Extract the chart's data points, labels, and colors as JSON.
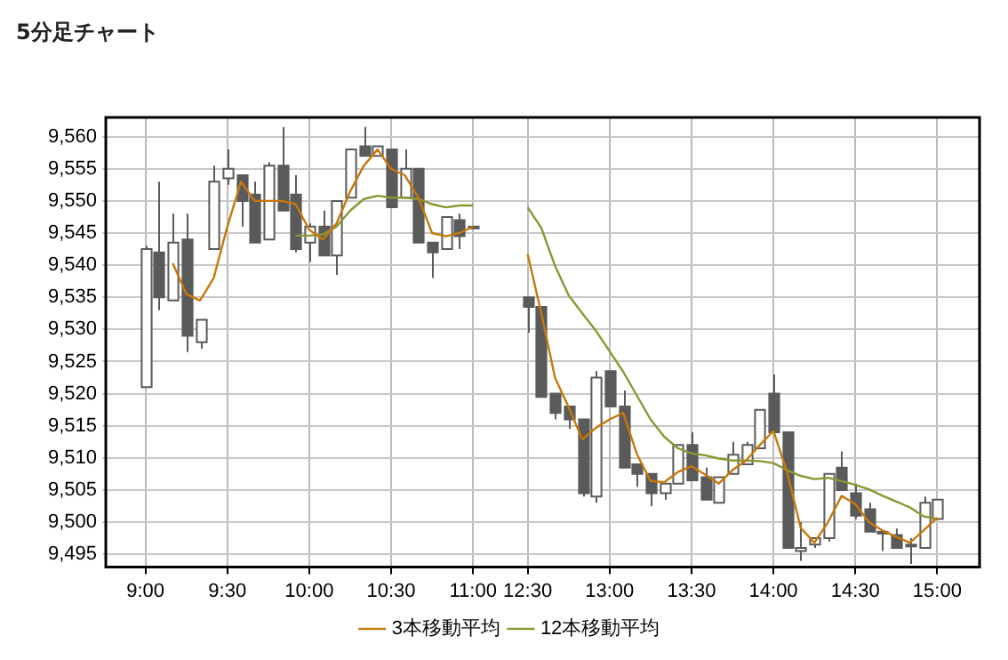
{
  "chart_data": {
    "type": "candlestick",
    "title": "5分足チャート",
    "color": "#5a5a5a",
    "categories": [
      "9:00",
      null,
      null,
      null,
      null,
      null,
      "9:30",
      null,
      null,
      null,
      null,
      null,
      "10:00",
      null,
      null,
      null,
      null,
      null,
      "10:30",
      null,
      null,
      null,
      null,
      null,
      "11:00",
      null,
      null,
      null,
      "12:30",
      null,
      null,
      null,
      null,
      null,
      "13:00",
      null,
      null,
      null,
      null,
      null,
      "13:30",
      null,
      null,
      null,
      null,
      null,
      "14:00",
      null,
      null,
      null,
      null,
      null,
      "14:30",
      null,
      null,
      null,
      null,
      null,
      "15:00"
    ],
    "ohlc": [
      [
        9521,
        9543,
        9521,
        9542.5
      ],
      [
        9542,
        9553,
        9533,
        9535
      ],
      [
        9534.5,
        9548,
        9534.5,
        9543.5
      ],
      [
        9544,
        9548,
        9526.5,
        9529
      ],
      [
        9528,
        9531.5,
        9527,
        9531.5
      ],
      [
        9542.5,
        9555.5,
        9542.5,
        9553
      ],
      [
        9553.5,
        9558,
        9552.5,
        9555
      ],
      [
        9554,
        9554,
        9546,
        9550
      ],
      [
        9551,
        9553,
        9543.5,
        9543.5
      ],
      [
        9544,
        9556,
        9544,
        9555.5
      ],
      [
        9555.5,
        9561.5,
        9548.5,
        9548.5
      ],
      [
        9551,
        9554,
        9542,
        9542.5
      ],
      [
        9543.5,
        9546.5,
        9540.5,
        9546
      ],
      [
        9546,
        9548.5,
        9541.5,
        9541.5
      ],
      [
        9541.5,
        9550,
        9538.5,
        9550
      ],
      [
        9550.5,
        9558,
        9550.5,
        9558
      ],
      [
        9558.5,
        9561.5,
        9557,
        9557
      ],
      [
        9557,
        9558.5,
        9557,
        9558.5
      ],
      [
        9558,
        9558,
        9549,
        9549
      ],
      [
        9550.5,
        9558,
        9550.5,
        9555
      ],
      [
        9555,
        9555,
        9543.5,
        9543.5
      ],
      [
        9543.5,
        9543.5,
        9538,
        9542
      ],
      [
        9542.5,
        9547.5,
        9542.5,
        9547.5
      ],
      [
        9547,
        9548,
        9542.5,
        9544.5
      ],
      [
        9546,
        9546,
        9546,
        9546
      ],
      null,
      null,
      null,
      [
        9535,
        9535,
        9529.5,
        9533.5
      ],
      [
        9533.5,
        9533.5,
        9519.5,
        9519.5
      ],
      [
        9520,
        9520,
        9516,
        9517
      ],
      [
        9518,
        9518,
        9514.5,
        9516
      ],
      [
        9516,
        9516,
        9504,
        9504.5
      ],
      [
        9504,
        9523.5,
        9503,
        9522.5
      ],
      [
        9523.5,
        9523.5,
        9518,
        9518
      ],
      [
        9518,
        9520.5,
        9508.5,
        9508.5
      ],
      [
        9509,
        9509,
        9505.5,
        9507.5
      ],
      [
        9507.5,
        9507.5,
        9502.5,
        9504.5
      ],
      [
        9504.5,
        9506,
        9503.5,
        9506
      ],
      [
        9506,
        9512,
        9506,
        9512
      ],
      [
        9512,
        9514,
        9506.5,
        9506.5
      ],
      [
        9507,
        9508.5,
        9503.5,
        9503.5
      ],
      [
        9503,
        9507,
        9503,
        9507
      ],
      [
        9507.5,
        9512.5,
        9507.5,
        9510.5
      ],
      [
        9509,
        9512.5,
        9509,
        9512
      ],
      [
        9511.5,
        9517.5,
        9511.5,
        9517.5
      ],
      [
        9520,
        9523,
        9514,
        9514
      ],
      [
        9514,
        9514,
        9496,
        9496
      ],
      [
        9495.5,
        9500,
        9494,
        9496
      ],
      [
        9496.5,
        9497.5,
        9496,
        9497.5
      ],
      [
        9497.5,
        9507.5,
        9497,
        9507.5
      ],
      [
        9508.5,
        9511,
        9505,
        9505
      ],
      [
        9504.5,
        9506,
        9500.5,
        9501
      ],
      [
        9502,
        9503,
        9498.5,
        9498.5
      ],
      [
        9498.5,
        9498.5,
        9495.5,
        9498.5
      ],
      [
        9498,
        9499,
        9496,
        9496
      ],
      [
        9496.5,
        9497.5,
        9493.5,
        9496.5
      ],
      [
        9496,
        9504,
        9496,
        9503
      ],
      [
        9500.5,
        9503.5,
        9500.5,
        9503.5
      ]
    ],
    "series": [
      {
        "type": "line",
        "name": "3本移動平均",
        "color": "#c8780a",
        "values": [
          null,
          null,
          9540.3,
          9535.5,
          9534.5,
          9538,
          9546,
          9553,
          9550,
          9550,
          9550,
          9549.5,
          9545.5,
          9544,
          9546.5,
          9551.5,
          9555.5,
          9558,
          9555,
          9554,
          9550.5,
          9545,
          9544.5,
          9545,
          9546,
          null,
          null,
          null,
          9541.7,
          9532.5,
          9522.5,
          9517.9,
          9512.9,
          9514.7,
          9516,
          9517,
          9510.6,
          9506.4,
          9506.2,
          9507.8,
          9508.7,
          9507.4,
          9506,
          9508.1,
          9509.6,
          9512,
          9514.2,
          9507.8,
          9499.1,
          9496.8,
          9500,
          9504.1,
          9502.8,
          9500,
          9498.7,
          9497.7,
          9496.8,
          9498.7,
          9500.7
        ]
      },
      {
        "type": "line",
        "name": "12本移動平均",
        "color": "#8c9632",
        "values": [
          null,
          null,
          null,
          null,
          null,
          null,
          null,
          null,
          null,
          null,
          null,
          9544.6,
          9544.6,
          9544.8,
          9546,
          9548.5,
          9550.3,
          9550.8,
          9550.5,
          9550.5,
          9550.3,
          9549.5,
          9549,
          9549.3,
          9549.3,
          null,
          null,
          null,
          9549,
          9545.8,
          9539.9,
          9535.3,
          9532.5,
          9529.8,
          9526.6,
          9523.4,
          9519.7,
          9516,
          9513.3,
          9511.5,
          9510.7,
          9510.4,
          9509.9,
          9509.6,
          9509.6,
          9509.5,
          9509.2,
          9508.1,
          9507.2,
          9506.7,
          9506.9,
          9506.4,
          9505.8,
          9505.1,
          9504.1,
          9503.2,
          9502.3,
          9500.9,
          9500.5
        ]
      }
    ],
    "ylim": [
      9493,
      9563
    ],
    "yticks": [
      {
        "value": 9495,
        "label": "9,495"
      },
      {
        "value": 9500,
        "label": "9,500"
      },
      {
        "value": 9505,
        "label": "9,505"
      },
      {
        "value": 9510,
        "label": "9,510"
      },
      {
        "value": 9515,
        "label": "9,515"
      },
      {
        "value": 9520,
        "label": "9,520"
      },
      {
        "value": 9525,
        "label": "9,525"
      },
      {
        "value": 9530,
        "label": "9,530"
      },
      {
        "value": 9535,
        "label": "9,535"
      },
      {
        "value": 9540,
        "label": "9,540"
      },
      {
        "value": 9545,
        "label": "9,545"
      },
      {
        "value": 9550,
        "label": "9,550"
      },
      {
        "value": 9555,
        "label": "9,555"
      },
      {
        "value": 9560,
        "label": "9,560"
      }
    ],
    "colors": [
      "#ffffff",
      "#5a5a5a",
      "#ffffff",
      "#5a5a5a",
      "#ffffff",
      "#ffffff",
      "#ffffff",
      "#5a5a5a",
      "#5a5a5a",
      "#ffffff",
      "#5a5a5a",
      "#5a5a5a",
      "#ffffff",
      "#5a5a5a",
      "#ffffff",
      "#ffffff",
      "#5a5a5a",
      "#ffffff",
      "#5a5a5a",
      "#ffffff",
      "#5a5a5a",
      "#5a5a5a",
      "#ffffff",
      "#5a5a5a",
      "#5a5a5a",
      null,
      null,
      null,
      "#5a5a5a",
      "#5a5a5a",
      "#5a5a5a",
      "#5a5a5a",
      "#5a5a5a",
      "#ffffff",
      "#5a5a5a",
      "#5a5a5a",
      "#5a5a5a",
      "#5a5a5a",
      "#ffffff",
      "#ffffff",
      "#5a5a5a",
      "#5a5a5a",
      "#ffffff",
      "#ffffff",
      "#ffffff",
      "#ffffff",
      "#5a5a5a",
      "#5a5a5a",
      "#ffffff",
      "#ffffff",
      "#ffffff",
      "#5a5a5a",
      "#5a5a5a",
      "#5a5a5a",
      "#5a5a5a",
      "#5a5a5a",
      "#5a5a5a",
      "#ffffff",
      "#ffffff"
    ],
    "grid": true,
    "legend": "bottom"
  }
}
